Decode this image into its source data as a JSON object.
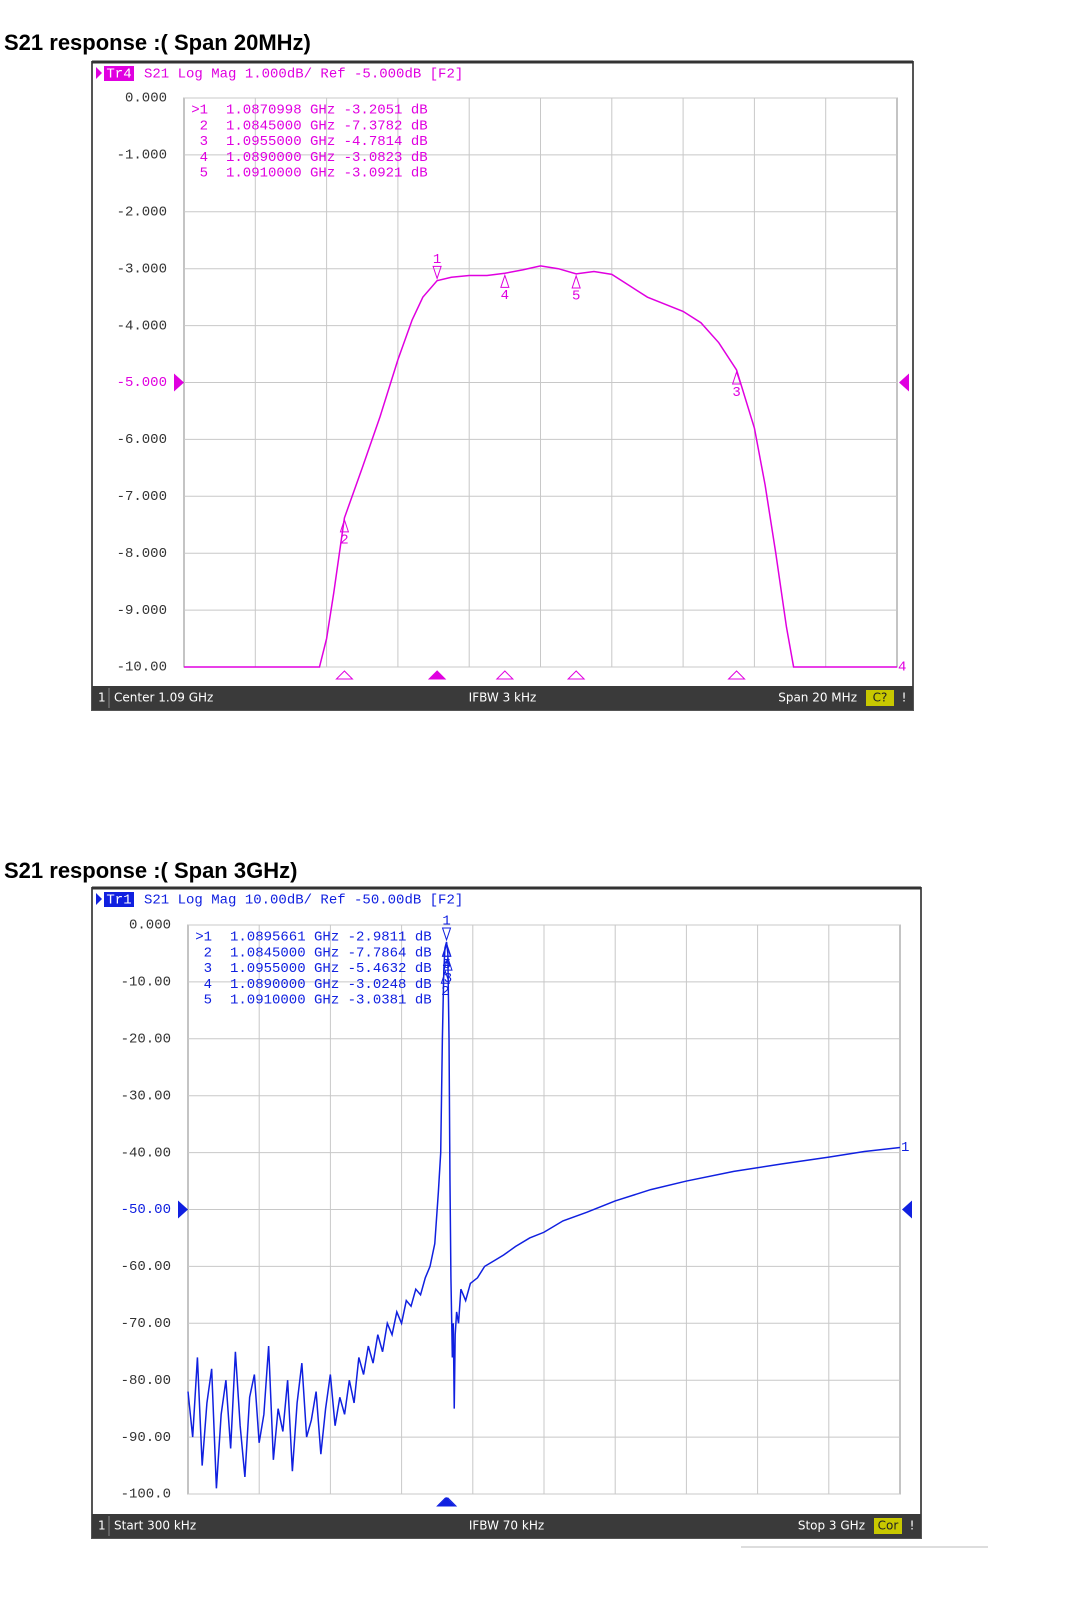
{
  "chart_data": [
    {
      "type": "line",
      "title": "S21 response :( Span 20MHz)",
      "trace_id": "Tr4",
      "header": "S21 Log Mag 1.000dB/ Ref -5.000dB [F2]",
      "channel": "1",
      "footer_left": "Center 1.09 GHz",
      "footer_center": "IFBW 3 kHz",
      "footer_right": "Span 20 MHz",
      "status": "C?",
      "status_flag": "!",
      "trace_end_label": "4",
      "xlim": [
        1.08,
        1.1
      ],
      "ylim": [
        -10,
        0
      ],
      "reference": -5,
      "grid": true,
      "yticks": [
        {
          "value": 0,
          "label": "0.000"
        },
        {
          "value": -1,
          "label": "-1.000"
        },
        {
          "value": -2,
          "label": "-2.000"
        },
        {
          "value": -3,
          "label": "-3.000"
        },
        {
          "value": -4,
          "label": "-4.000"
        },
        {
          "value": -5,
          "label": "-5.000"
        },
        {
          "value": -6,
          "label": "-6.000"
        },
        {
          "value": -7,
          "label": "-7.000"
        },
        {
          "value": -8,
          "label": "-8.000"
        },
        {
          "value": -9,
          "label": "-9.000"
        },
        {
          "value": -10,
          "label": "-10.00"
        }
      ],
      "x": [
        1.08,
        1.0838,
        1.084,
        1.0842,
        1.0845,
        1.085,
        1.0855,
        1.086,
        1.0864,
        1.0867,
        1.0871,
        1.0875,
        1.088,
        1.0885,
        1.089,
        1.0895,
        1.09,
        1.0905,
        1.091,
        1.0915,
        1.092,
        1.0925,
        1.093,
        1.094,
        1.0945,
        1.095,
        1.0955,
        1.096,
        1.0963,
        1.0966,
        1.0969,
        1.0971,
        1.1
      ],
      "series": [
        {
          "color": "#e000e0",
          "values": [
            -10,
            -10,
            -9.5,
            -8.7,
            -7.38,
            -6.5,
            -5.6,
            -4.6,
            -3.9,
            -3.5,
            -3.21,
            -3.15,
            -3.12,
            -3.12,
            -3.08,
            -3.02,
            -2.95,
            -3,
            -3.09,
            -3.05,
            -3.1,
            -3.3,
            -3.5,
            -3.75,
            -3.95,
            -4.3,
            -4.78,
            -5.8,
            -6.8,
            -8,
            -9.3,
            -10,
            -10
          ]
        }
      ],
      "markers": [
        {
          "id": ">1",
          "tag": "1",
          "x": 1.0870998,
          "y": -3.2051,
          "label": "1.0870998 GHz -3.2051 dB"
        },
        {
          "id": "2",
          "tag": "2",
          "x": 1.0845,
          "y": -7.3782,
          "label": "1.0845000 GHz -7.3782 dB"
        },
        {
          "id": "3",
          "tag": "3",
          "x": 1.0955,
          "y": -4.7814,
          "label": "1.0955000 GHz -4.7814 dB"
        },
        {
          "id": "4",
          "tag": "4",
          "x": 1.089,
          "y": -3.0823,
          "label": "1.0890000 GHz -3.0823 dB"
        },
        {
          "id": "5",
          "tag": "5",
          "x": 1.091,
          "y": -3.0921,
          "label": "1.0910000 GHz -3.0921 dB"
        }
      ]
    },
    {
      "type": "line",
      "title": "S21 response :( Span 3GHz)",
      "trace_id": "Tr1",
      "header": "S21 Log Mag 10.00dB/ Ref -50.00dB [F2]",
      "channel": "1",
      "footer_left": "Start 300 kHz",
      "footer_center": "IFBW 70 kHz",
      "footer_right": "Stop 3 GHz",
      "status": "Cor",
      "status_flag": "!",
      "trace_end_label": "1",
      "xlim": [
        0.0003,
        3
      ],
      "ylim": [
        -100,
        0
      ],
      "reference": -50,
      "grid": true,
      "yticks": [
        {
          "value": 0,
          "label": "0.000"
        },
        {
          "value": -10,
          "label": "-10.00"
        },
        {
          "value": -20,
          "label": "-20.00"
        },
        {
          "value": -30,
          "label": "-30.00"
        },
        {
          "value": -40,
          "label": "-40.00"
        },
        {
          "value": -50,
          "label": "-50.00"
        },
        {
          "value": -60,
          "label": "-60.00"
        },
        {
          "value": -70,
          "label": "-70.00"
        },
        {
          "value": -80,
          "label": "-80.00"
        },
        {
          "value": -90,
          "label": "-90.00"
        },
        {
          "value": -100,
          "label": "-100.0"
        }
      ],
      "x": [
        0.0003,
        0.02,
        0.04,
        0.06,
        0.08,
        0.1,
        0.12,
        0.14,
        0.16,
        0.18,
        0.2,
        0.22,
        0.24,
        0.26,
        0.28,
        0.3,
        0.32,
        0.34,
        0.36,
        0.38,
        0.4,
        0.42,
        0.44,
        0.46,
        0.48,
        0.5,
        0.52,
        0.54,
        0.56,
        0.58,
        0.6,
        0.62,
        0.64,
        0.66,
        0.68,
        0.7,
        0.72,
        0.74,
        0.76,
        0.78,
        0.8,
        0.82,
        0.84,
        0.86,
        0.88,
        0.9,
        0.92,
        0.94,
        0.96,
        0.98,
        1,
        1.02,
        1.04,
        1.055,
        1.065,
        1.072,
        1.078,
        1.083,
        1.0896,
        1.095,
        1.1,
        1.104,
        1.108,
        1.114,
        1.118,
        1.122,
        1.126,
        1.132,
        1.14,
        1.15,
        1.17,
        1.19,
        1.22,
        1.25,
        1.29,
        1.33,
        1.38,
        1.44,
        1.5,
        1.58,
        1.68,
        1.8,
        1.95,
        2.1,
        2.3,
        2.5,
        2.7,
        2.85,
        3
      ],
      "series": [
        {
          "color": "#1020e0",
          "values": [
            -82,
            -90,
            -76,
            -95,
            -84,
            -78,
            -99,
            -86,
            -80,
            -92,
            -75,
            -88,
            -97,
            -83,
            -79,
            -91,
            -86,
            -74,
            -94,
            -85,
            -89,
            -80,
            -96,
            -84,
            -77,
            -90,
            -87,
            -82,
            -93,
            -85,
            -79,
            -88,
            -83,
            -86,
            -80,
            -84,
            -76,
            -79,
            -74,
            -77,
            -72,
            -75,
            -70,
            -72,
            -68,
            -70,
            -66,
            -67,
            -64,
            -65,
            -62,
            -60,
            -56,
            -47,
            -40,
            -20,
            -8,
            -4,
            -2.98,
            -5,
            -20,
            -45,
            -62,
            -76,
            -70,
            -85,
            -72,
            -68,
            -70,
            -64,
            -66,
            -63,
            -62,
            -60,
            -59,
            -58,
            -56.5,
            -55,
            -54,
            -52,
            -50.5,
            -48.5,
            -46.5,
            -45,
            -43.3,
            -42,
            -40.8,
            -39.8,
            -39.1
          ]
        }
      ],
      "markers": [
        {
          "id": ">1",
          "tag": "1",
          "x": 1.0895661,
          "y": -2.9811,
          "label": "1.0895661 GHz -2.9811 dB"
        },
        {
          "id": "2",
          "tag": "2",
          "x": 1.0845,
          "y": -7.7864,
          "label": "1.0845000 GHz -7.7864 dB"
        },
        {
          "id": "3",
          "tag": "3",
          "x": 1.0955,
          "y": -5.4632,
          "label": "1.0955000 GHz -5.4632 dB"
        },
        {
          "id": "4",
          "tag": "4",
          "x": 1.089,
          "y": -3.0248,
          "label": "1.0890000 GHz -3.0248 dB"
        },
        {
          "id": "5",
          "tag": "5",
          "x": 1.091,
          "y": -3.0381,
          "label": "1.0910000 GHz -3.0381 dB"
        }
      ]
    }
  ]
}
